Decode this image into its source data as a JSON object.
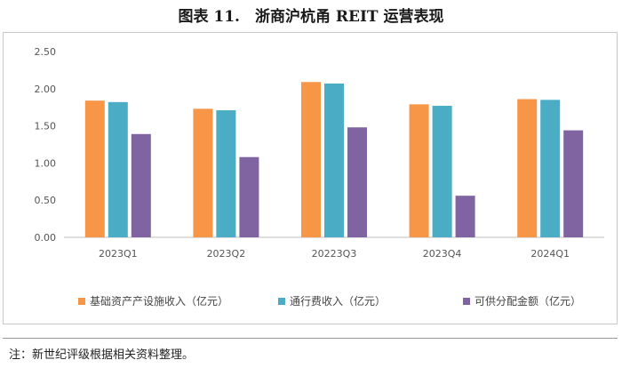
{
  "header": {
    "title": "图表 11.　浙商沪杭甬 REIT 运营表现"
  },
  "footer": {
    "note": "注：新世纪评级根据相关资料整理。"
  },
  "chart_data": {
    "type": "bar",
    "title": "图表 11.　浙商沪杭甬 REIT 运营表现",
    "categories": [
      "2023Q1",
      "2023Q2",
      "20223Q3",
      "2023Q4",
      "2024Q1"
    ],
    "yticks": [
      "0.00",
      "0.50",
      "1.00",
      "1.50",
      "2.00",
      "2.50"
    ],
    "ylim": [
      0,
      2.5
    ],
    "grid": false,
    "legend": "bottom",
    "series": [
      {
        "name": "基础资产产设施收入（亿元）",
        "color": "#F79646",
        "values": [
          1.84,
          1.73,
          2.09,
          1.79,
          1.86
        ]
      },
      {
        "name": "通行费收入（亿元）",
        "color": "#4BACC6",
        "values": [
          1.82,
          1.71,
          2.07,
          1.77,
          1.85
        ]
      },
      {
        "name": "可供分配金额（亿元）",
        "color": "#8064A2",
        "values": [
          1.39,
          1.08,
          1.48,
          0.56,
          1.44
        ]
      }
    ]
  }
}
